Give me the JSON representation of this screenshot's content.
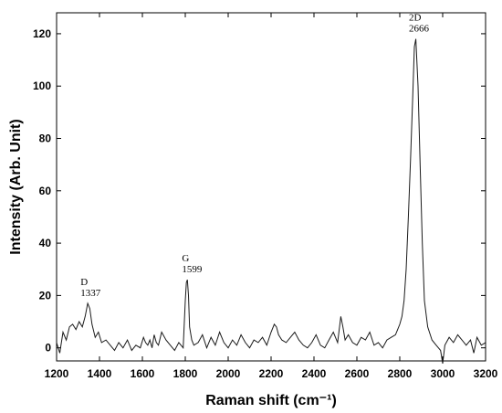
{
  "chart_data": {
    "type": "line",
    "title": "",
    "xlabel": "Raman shift (cm⁻¹)",
    "ylabel": "Intensity (Arb. Unit)",
    "xlim": [
      1200,
      3200
    ],
    "ylim": [
      -5,
      128
    ],
    "xticks": [
      1200,
      1400,
      1600,
      1800,
      2000,
      2200,
      2400,
      2600,
      2800,
      3000,
      3200
    ],
    "yticks": [
      0,
      20,
      40,
      60,
      80,
      100,
      120
    ],
    "grid": false,
    "legend": "none",
    "series": [
      {
        "color": "#1a1a1a",
        "x": [
          1200,
          1215,
          1230,
          1245,
          1260,
          1275,
          1290,
          1305,
          1320,
          1333,
          1345,
          1355,
          1365,
          1380,
          1395,
          1410,
          1430,
          1450,
          1470,
          1490,
          1510,
          1530,
          1550,
          1570,
          1590,
          1605,
          1615,
          1625,
          1635,
          1645,
          1655,
          1665,
          1675,
          1690,
          1710,
          1730,
          1750,
          1770,
          1790,
          1800,
          1805,
          1810,
          1815,
          1820,
          1830,
          1840,
          1860,
          1880,
          1900,
          1920,
          1940,
          1960,
          1980,
          2000,
          2020,
          2040,
          2060,
          2080,
          2100,
          2120,
          2140,
          2160,
          2180,
          2200,
          2215,
          2225,
          2235,
          2250,
          2270,
          2290,
          2310,
          2330,
          2350,
          2370,
          2390,
          2410,
          2430,
          2450,
          2470,
          2490,
          2510,
          2525,
          2535,
          2545,
          2560,
          2580,
          2600,
          2620,
          2640,
          2660,
          2680,
          2700,
          2720,
          2740,
          2760,
          2780,
          2790,
          2800,
          2810,
          2820,
          2830,
          2840,
          2850,
          2860,
          2868,
          2875,
          2885,
          2895,
          2905,
          2915,
          2930,
          2950,
          2970,
          2990,
          3000,
          3010,
          3030,
          3050,
          3070,
          3090,
          3110,
          3130,
          3145,
          3160,
          3180,
          3200
        ],
        "y": [
          2,
          -2,
          6,
          3,
          8,
          9,
          7,
          10,
          8,
          12,
          17,
          15,
          9,
          4,
          6,
          2,
          3,
          1,
          -1,
          2,
          0,
          3,
          -1,
          1,
          0,
          4,
          2,
          1,
          3,
          0,
          5,
          2,
          1,
          6,
          3,
          1,
          -1,
          2,
          0,
          18,
          25,
          26,
          20,
          8,
          3,
          1,
          2,
          5,
          0,
          4,
          1,
          6,
          2,
          0,
          3,
          1,
          5,
          2,
          0,
          3,
          2,
          4,
          1,
          6,
          9,
          8,
          5,
          3,
          2,
          4,
          6,
          3,
          1,
          0,
          2,
          5,
          1,
          0,
          3,
          6,
          2,
          12,
          8,
          3,
          5,
          2,
          1,
          4,
          3,
          6,
          1,
          2,
          0,
          3,
          4,
          5,
          7,
          9,
          12,
          18,
          30,
          50,
          72,
          95,
          115,
          118,
          100,
          70,
          40,
          18,
          8,
          3,
          1,
          -1,
          -6,
          1,
          4,
          2,
          5,
          3,
          1,
          3,
          -2,
          4,
          1,
          2
        ]
      }
    ],
    "annotations": [
      {
        "name": "D",
        "value": "1337",
        "x": 1337,
        "y": 17
      },
      {
        "name": "G",
        "value": "1599",
        "x": 1810,
        "y": 26
      },
      {
        "name": "2D",
        "value": "2666",
        "x": 2868,
        "y": 118
      }
    ]
  }
}
